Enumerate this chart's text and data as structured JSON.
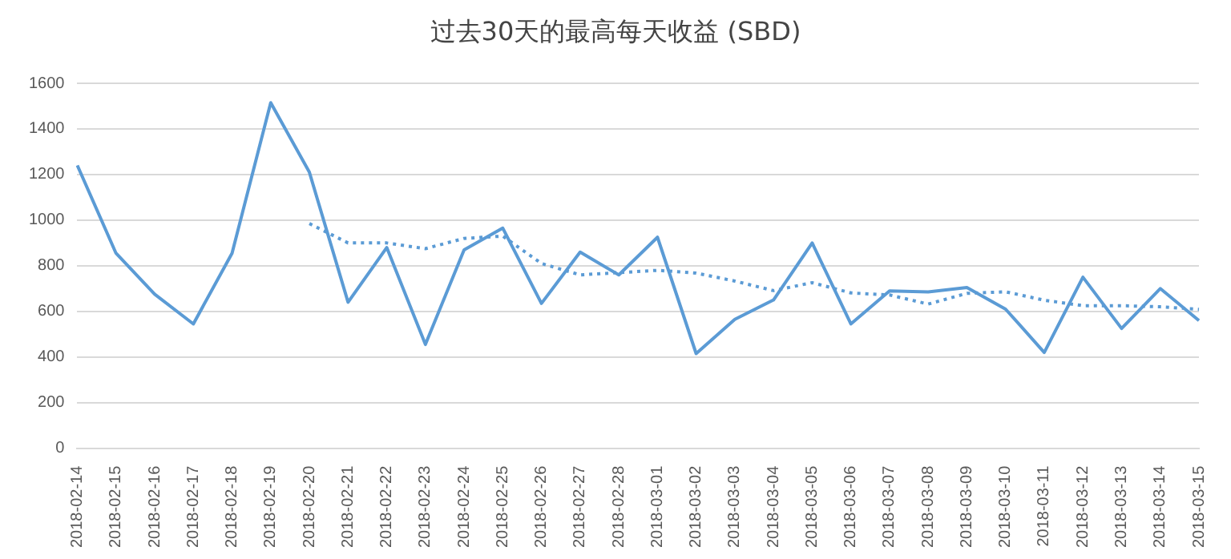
{
  "chart_data": {
    "type": "line",
    "title": "过去30天的最高每天收益 (SBD)",
    "categories": [
      "2018-02-14",
      "2018-02-15",
      "2018-02-16",
      "2018-02-17",
      "2018-02-18",
      "2018-02-19",
      "2018-02-20",
      "2018-02-21",
      "2018-02-22",
      "2018-02-23",
      "2018-02-24",
      "2018-02-25",
      "2018-02-26",
      "2018-02-27",
      "2018-02-28",
      "2018-03-01",
      "2018-03-02",
      "2018-03-03",
      "2018-03-04",
      "2018-03-05",
      "2018-03-06",
      "2018-03-07",
      "2018-03-08",
      "2018-03-09",
      "2018-03-10",
      "2018-03-11",
      "2018-03-12",
      "2018-03-13",
      "2018-03-14",
      "2018-03-15"
    ],
    "series": [
      {
        "color": "#5b9bd5",
        "line_style": "solid",
        "values": [
          1240,
          855,
          675,
          545,
          855,
          1515,
          1210,
          640,
          880,
          455,
          870,
          965,
          635,
          860,
          760,
          925,
          415,
          565,
          650,
          900,
          545,
          690,
          685,
          705,
          610,
          420,
          750,
          525,
          700,
          560
        ]
      },
      {
        "color": "#5b9bd5",
        "line_style": "dotted",
        "values": [
          null,
          null,
          null,
          null,
          null,
          null,
          985,
          900,
          900,
          875,
          920,
          930,
          810,
          760,
          770,
          780,
          768,
          733,
          691,
          726,
          681,
          672,
          632,
          679,
          686,
          649,
          625,
          625,
          620,
          609
        ]
      }
    ],
    "ylim": [
      0,
      1600
    ],
    "yticks": [
      0,
      200,
      400,
      600,
      800,
      1000,
      1200,
      1400,
      1600
    ],
    "grid": "y",
    "legend": false,
    "marker": "none"
  }
}
